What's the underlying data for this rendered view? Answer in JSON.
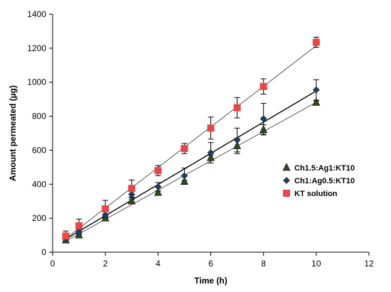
{
  "chart_data": {
    "type": "scatter",
    "title": "",
    "xlabel": "Time (h)",
    "ylabel": "Amount permeated (µg)",
    "xlim": [
      0,
      12
    ],
    "ylim": [
      0,
      1400
    ],
    "x_ticks": [
      0,
      2,
      4,
      6,
      8,
      10,
      12
    ],
    "y_ticks": [
      0,
      200,
      400,
      600,
      800,
      1000,
      1200,
      1400
    ],
    "x_tick_labels": [
      "0",
      "2",
      "4",
      "6",
      "8",
      "10",
      "12"
    ],
    "y_tick_labels": [
      "0",
      "200",
      "400",
      "600",
      "800",
      "1000",
      "1200",
      "1400"
    ],
    "grid": false,
    "legend_position": "right",
    "trendlines": "linear",
    "series": [
      {
        "name": "Ch1.5:Ag1:KT10",
        "marker": "triangle",
        "color": "#2e4a1e",
        "x": [
          0.5,
          1,
          2,
          3,
          4,
          5,
          6,
          7,
          8,
          10
        ],
        "y": [
          70,
          100,
          200,
          300,
          350,
          415,
          555,
          625,
          720,
          880
        ],
        "error": [
          5,
          8,
          10,
          10,
          10,
          8,
          15,
          45,
          30,
          10
        ]
      },
      {
        "name": "Ch1:Ag0.5:KT10",
        "marker": "diamond",
        "color": "#1f3b5c",
        "x": [
          0.5,
          1,
          2,
          3,
          4,
          5,
          6,
          7,
          8,
          10
        ],
        "y": [
          80,
          120,
          220,
          340,
          385,
          450,
          585,
          660,
          785,
          955
        ],
        "error": [
          10,
          15,
          20,
          20,
          25,
          45,
          60,
          70,
          90,
          60
        ]
      },
      {
        "name": "KT solution",
        "marker": "square",
        "color": "#e8474a",
        "x": [
          0.5,
          1,
          2,
          3,
          4,
          5,
          6,
          7,
          8,
          10
        ],
        "y": [
          95,
          155,
          255,
          375,
          480,
          610,
          730,
          850,
          975,
          1235
        ],
        "error": [
          30,
          40,
          50,
          50,
          30,
          30,
          65,
          60,
          45,
          30
        ]
      }
    ]
  }
}
